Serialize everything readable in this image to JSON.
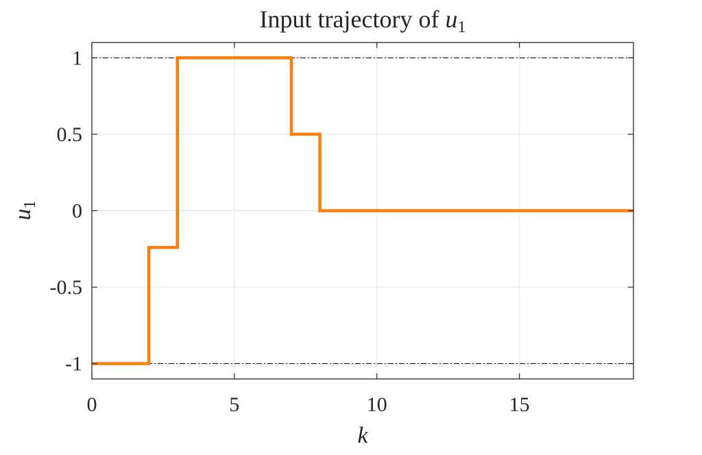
{
  "chart_data": {
    "type": "line",
    "step": true,
    "title_prefix": "Input trajectory of ",
    "title_var": "u",
    "title_sub": "1",
    "xlabel": "k",
    "ylabel_var": "u",
    "ylabel_sub": "1",
    "xlim": [
      0,
      19
    ],
    "ylim": [
      -1.1,
      1.1
    ],
    "xticks": [
      0,
      5,
      10,
      15
    ],
    "xtick_labels": [
      "0",
      "5",
      "10",
      "15"
    ],
    "yticks": [
      -1,
      -0.5,
      0,
      0.5,
      1
    ],
    "ytick_labels": [
      "-1",
      "-0.5",
      "0",
      "0.5",
      "1"
    ],
    "grid": true,
    "series": [
      {
        "color": "#ff7f0e",
        "x": [
          0,
          1,
          2,
          3,
          4,
          5,
          6,
          7,
          8,
          9,
          10,
          11,
          12,
          13,
          14,
          15,
          16,
          17,
          18,
          19
        ],
        "values": [
          -1,
          -1,
          -0.24,
          1,
          1,
          1,
          1,
          0.5,
          0,
          0,
          0,
          0,
          0,
          0,
          0,
          0,
          0,
          0,
          0,
          0
        ]
      }
    ],
    "reference_lines": [
      {
        "y": 1,
        "style": "dash-dot",
        "color": "#000000"
      },
      {
        "y": -1,
        "style": "dash-dot",
        "color": "#000000"
      }
    ]
  }
}
